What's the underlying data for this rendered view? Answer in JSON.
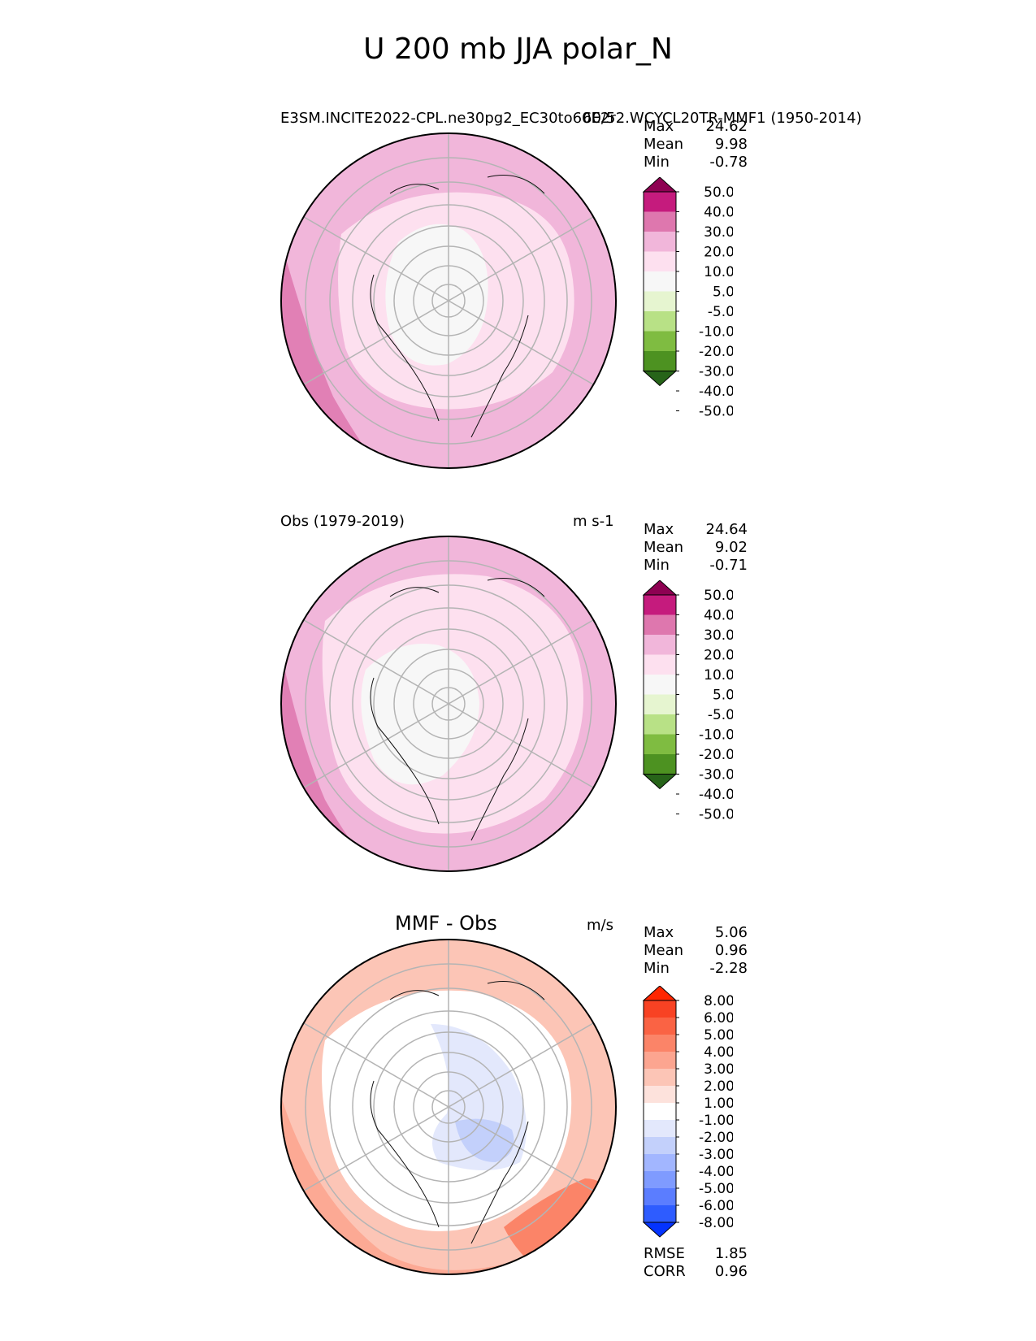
{
  "figure_title": "U 200 mb JJA polar_N",
  "panels": [
    {
      "left_title": "E3SM.INCITE2022-CPL.ne30pg2_EC30to60E2r2.WCYCL20TR-MMF1 (1950-2014)",
      "right_title": "60/5",
      "stats": [
        {
          "label": "Max",
          "value": "24.62"
        },
        {
          "label": "Mean",
          "value": "9.98"
        },
        {
          "label": "Min",
          "value": "-0.78"
        }
      ],
      "colorbar": {
        "colors": [
          "#276419",
          "#4d9221",
          "#7fbc41",
          "#b8e186",
          "#e6f5d0",
          "#f7f7f7",
          "#fde0ef",
          "#f1b6da",
          "#de77ae",
          "#c51b7d",
          "#8e0152"
        ],
        "labels": [
          "-50.0",
          "-40.0",
          "-30.0",
          "-20.0",
          "-10.0",
          "-5.0",
          "5.0",
          "10.0",
          "20.0",
          "30.0",
          "40.0",
          "50.0"
        ]
      }
    },
    {
      "left_title": "Obs (1979-2019)",
      "right_title": "m s-1",
      "stats": [
        {
          "label": "Max",
          "value": "24.64"
        },
        {
          "label": "Mean",
          "value": "9.02"
        },
        {
          "label": "Min",
          "value": "-0.71"
        }
      ],
      "colorbar": {
        "colors": [
          "#276419",
          "#4d9221",
          "#7fbc41",
          "#b8e186",
          "#e6f5d0",
          "#f7f7f7",
          "#fde0ef",
          "#f1b6da",
          "#de77ae",
          "#c51b7d",
          "#8e0152"
        ],
        "labels": [
          "-50.0",
          "-40.0",
          "-30.0",
          "-20.0",
          "-10.0",
          "-5.0",
          "5.0",
          "10.0",
          "20.0",
          "30.0",
          "40.0",
          "50.0"
        ]
      }
    },
    {
      "center_title": "MMF - Obs",
      "right_title": "m/s",
      "stats": [
        {
          "label": "Max",
          "value": "5.06"
        },
        {
          "label": "Mean",
          "value": "0.96"
        },
        {
          "label": "Min",
          "value": "-2.28"
        }
      ],
      "extra_stats": [
        {
          "label": "RMSE",
          "value": "1.85"
        },
        {
          "label": "CORR",
          "value": "0.96"
        }
      ],
      "colorbar": {
        "colors": [
          "#0433ff",
          "#2e5cff",
          "#5b7dff",
          "#7f9bff",
          "#a2b6ff",
          "#c3d0fb",
          "#e3e8fc",
          "#ffffff",
          "#fde2dc",
          "#fcc5b6",
          "#fca590",
          "#fb8468",
          "#fa6344",
          "#f84223",
          "#ff2600"
        ],
        "labels": [
          "-8.00",
          "-6.00",
          "-5.00",
          "-4.00",
          "-3.00",
          "-2.00",
          "-1.00",
          "1.00",
          "2.00",
          "3.00",
          "4.00",
          "5.00",
          "6.00",
          "8.00"
        ]
      }
    }
  ],
  "chart_data": [
    {
      "type": "heatmap",
      "projection": "north polar stereographic",
      "title": "E3SM.INCITE2022-CPL.ne30pg2_EC30to60E2r2.WCYCL20TR-MMF1 (1950-2014)",
      "variable": "U 200 mb JJA",
      "units": "m s-1",
      "levels": [
        -50,
        -40,
        -30,
        -20,
        -10,
        -5,
        5,
        10,
        20,
        30,
        40,
        50
      ],
      "max": 24.62,
      "mean": 9.98,
      "min": -0.78
    },
    {
      "type": "heatmap",
      "projection": "north polar stereographic",
      "title": "Obs (1979-2019)",
      "variable": "U 200 mb JJA",
      "units": "m s-1",
      "levels": [
        -50,
        -40,
        -30,
        -20,
        -10,
        -5,
        5,
        10,
        20,
        30,
        40,
        50
      ],
      "max": 24.64,
      "mean": 9.02,
      "min": -0.71
    },
    {
      "type": "heatmap",
      "projection": "north polar stereographic",
      "title": "MMF - Obs",
      "units": "m/s",
      "levels": [
        -8,
        -6,
        -5,
        -4,
        -3,
        -2,
        -1,
        1,
        2,
        3,
        4,
        5,
        6,
        8
      ],
      "max": 5.06,
      "mean": 0.96,
      "min": -2.28,
      "rmse": 1.85,
      "corr": 0.96
    }
  ]
}
